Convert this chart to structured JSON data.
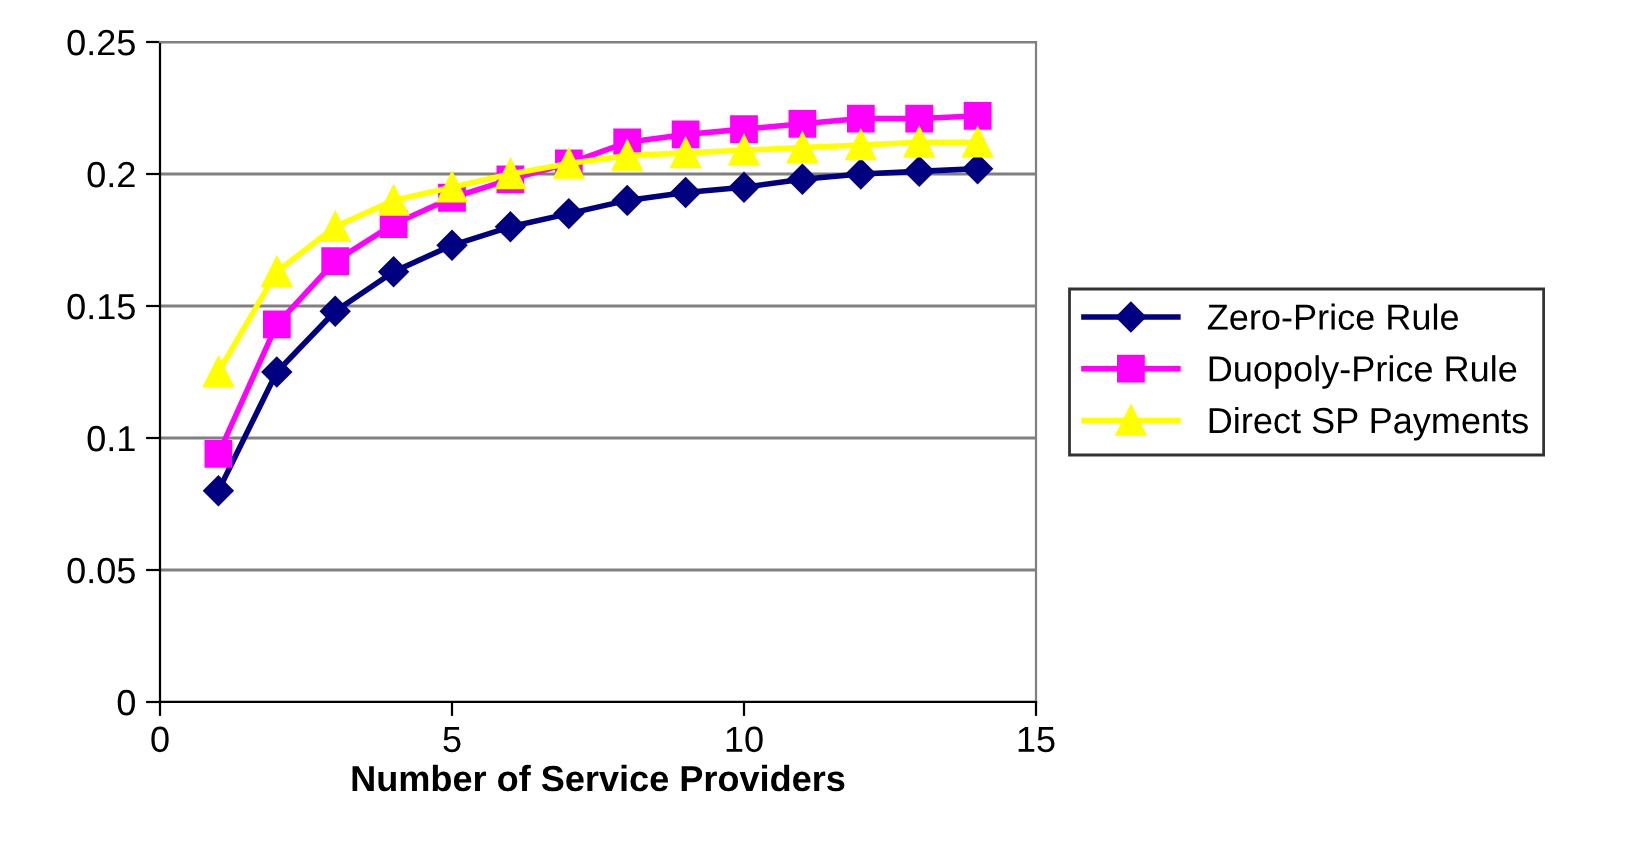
{
  "chart_data": {
    "type": "line",
    "xlabel": "Number of Service Providers",
    "x": [
      1,
      2,
      3,
      4,
      5,
      6,
      7,
      8,
      9,
      10,
      11,
      12,
      13,
      14
    ],
    "series": [
      {
        "name": "Zero-Price Rule",
        "color": "#000080",
        "marker": "diamond",
        "values": [
          0.08,
          0.125,
          0.148,
          0.163,
          0.173,
          0.18,
          0.185,
          0.19,
          0.193,
          0.195,
          0.198,
          0.2,
          0.201,
          0.202
        ]
      },
      {
        "name": "Duopoly-Price Rule",
        "color": "#ff00ff",
        "marker": "square",
        "values": [
          0.094,
          0.143,
          0.167,
          0.181,
          0.191,
          0.198,
          0.204,
          0.212,
          0.215,
          0.217,
          0.219,
          0.221,
          0.221,
          0.222
        ]
      },
      {
        "name": "Direct SP Payments",
        "color": "#ffff00",
        "marker": "triangle",
        "values": [
          0.125,
          0.163,
          0.18,
          0.19,
          0.195,
          0.2,
          0.204,
          0.207,
          0.208,
          0.209,
          0.21,
          0.211,
          0.212,
          0.212
        ]
      }
    ],
    "xlim": [
      0,
      15
    ],
    "xticks": [
      0,
      5,
      10,
      15
    ],
    "ylim": [
      0,
      0.25
    ],
    "yticks": [
      0,
      0.05,
      0.1,
      0.15,
      0.2,
      0.25
    ],
    "grid": "y",
    "legend": "right",
    "line_style": "solid"
  }
}
